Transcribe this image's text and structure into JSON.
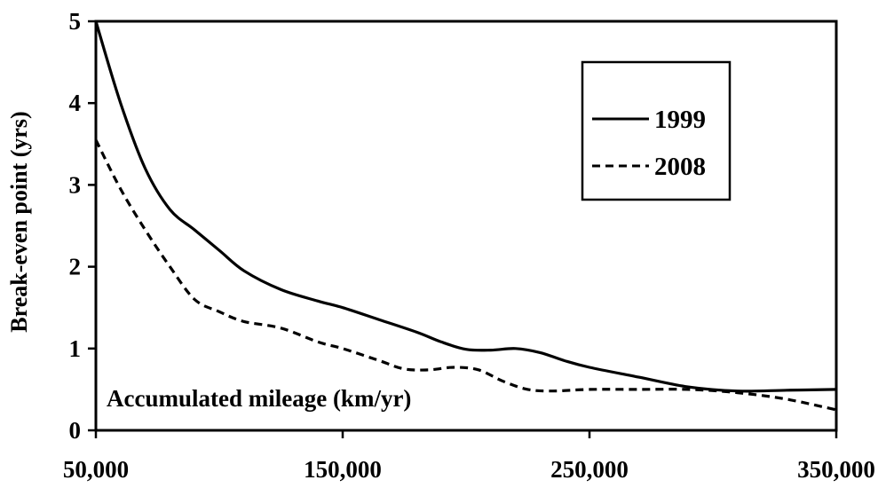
{
  "chart_data": {
    "type": "line",
    "title": "",
    "xlabel": "",
    "ylabel": "Break-even point (yrs)",
    "annotation": "Accumulated mileage (km/yr)",
    "xlim": [
      50000,
      350000
    ],
    "ylim": [
      0,
      5
    ],
    "xticks": [
      50000,
      150000,
      250000,
      350000
    ],
    "xtick_labels": [
      "50,000",
      "150,000",
      "250,000",
      "350,000"
    ],
    "yticks": [
      0,
      1,
      2,
      3,
      4,
      5
    ],
    "ytick_labels": [
      "0",
      "1",
      "2",
      "3",
      "4",
      "5"
    ],
    "grid": false,
    "legend_position": "top-right",
    "series": [
      {
        "name": "1999",
        "style": "solid",
        "color": "#000000",
        "x": [
          50000,
          60000,
          70000,
          80000,
          90000,
          100000,
          110000,
          125000,
          140000,
          150000,
          165000,
          180000,
          190000,
          200000,
          210000,
          220000,
          230000,
          240000,
          250000,
          270000,
          290000,
          310000,
          330000,
          350000
        ],
        "y": [
          5.0,
          4.0,
          3.2,
          2.7,
          2.45,
          2.2,
          1.95,
          1.72,
          1.58,
          1.5,
          1.35,
          1.2,
          1.08,
          0.99,
          0.98,
          1.0,
          0.95,
          0.85,
          0.77,
          0.65,
          0.53,
          0.48,
          0.49,
          0.5
        ]
      },
      {
        "name": "2008",
        "style": "dashed",
        "color": "#000000",
        "x": [
          50000,
          60000,
          70000,
          80000,
          90000,
          100000,
          110000,
          125000,
          140000,
          150000,
          165000,
          175000,
          185000,
          195000,
          205000,
          215000,
          225000,
          235000,
          250000,
          270000,
          290000,
          310000,
          330000,
          350000
        ],
        "y": [
          3.55,
          2.95,
          2.45,
          2.0,
          1.6,
          1.45,
          1.33,
          1.25,
          1.08,
          1.0,
          0.85,
          0.75,
          0.74,
          0.77,
          0.74,
          0.6,
          0.5,
          0.48,
          0.5,
          0.5,
          0.5,
          0.46,
          0.38,
          0.25
        ]
      }
    ]
  }
}
